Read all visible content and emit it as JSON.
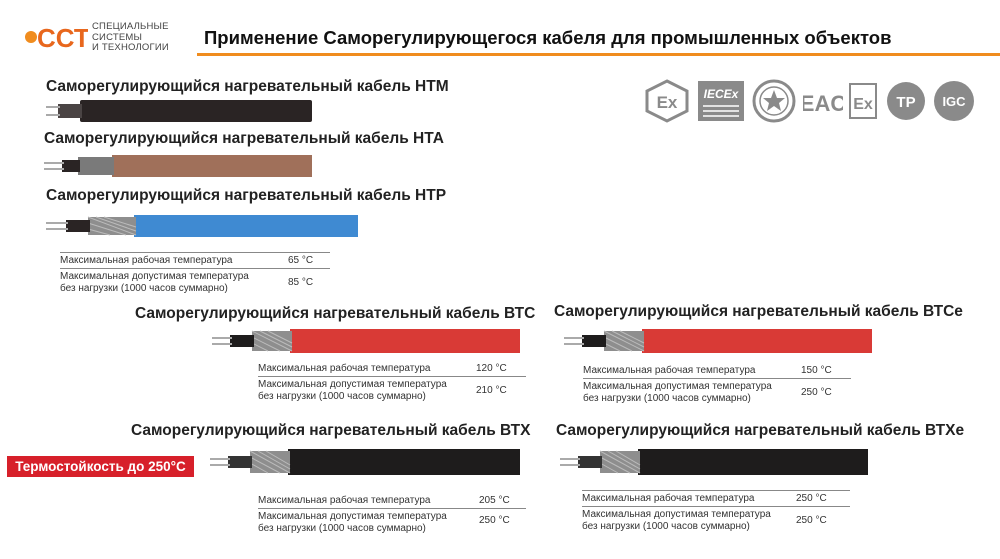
{
  "logo": {
    "mark": "ССТ",
    "line1": "СПЕЦИАЛЬНЫЕ",
    "line2": "СИСТЕМЫ",
    "line3": "И ТЕХНОЛОГИИ"
  },
  "title": "Применение Саморегулирующегося кабеля для промышленных объектов",
  "certifications": [
    {
      "name": "ex-hexagon",
      "label": "Ex"
    },
    {
      "name": "iecex",
      "label": "IECEx"
    },
    {
      "name": "seal",
      "label": ""
    },
    {
      "name": "eac",
      "label": "EAC"
    },
    {
      "name": "ex-box",
      "label": "Ex"
    },
    {
      "name": "tr",
      "label": "ТР"
    },
    {
      "name": "igc",
      "label": "IGC"
    }
  ],
  "cables": {
    "htm": {
      "name": "Саморегулирующийся нагревательный кабель НТМ",
      "color": "#2a2424"
    },
    "hta": {
      "name": "Саморегулирующийся нагревательный кабель НТА",
      "color": "#a0705a"
    },
    "htp": {
      "name": "Саморегулирующийся нагревательный кабель НТР",
      "color": "#3f8ad2",
      "spec": {
        "max_working_label": "Максимальная рабочая температура",
        "max_working_value": "65 °С",
        "max_allowed_label_1": "Максимальная допустимая температура",
        "max_allowed_label_2": "без нагрузки (1000 часов суммарно)",
        "max_allowed_value": "85 °С"
      }
    },
    "btc": {
      "name": "Саморегулирующийся нагревательный кабель ВТС",
      "color": "#d93a36",
      "spec": {
        "max_working_label": "Максимальная рабочая температура",
        "max_working_value": "120 °С",
        "max_allowed_label_1": "Максимальная допустимая температура",
        "max_allowed_label_2": "без нагрузки (1000 часов суммарно)",
        "max_allowed_value": "210 °С"
      }
    },
    "btce": {
      "name": "Саморегулирующийся нагревательный кабель ВТСе",
      "color": "#d93a36",
      "spec": {
        "max_working_label": "Максимальная рабочая температура",
        "max_working_value": "150 °С",
        "max_allowed_label_1": "Максимальная допустимая температура",
        "max_allowed_label_2": "без нагрузки (1000 часов суммарно)",
        "max_allowed_value": "250 °С"
      }
    },
    "btx": {
      "name": "Саморегулирующийся нагревательный кабель ВТХ",
      "color": "#1e1c1c",
      "spec": {
        "max_working_label": "Максимальная рабочая температура",
        "max_working_value": "205 °С",
        "max_allowed_label_1": "Максимальная допустимая температура",
        "max_allowed_label_2": "без нагрузки (1000 часов суммарно)",
        "max_allowed_value": "250 °С"
      }
    },
    "btxe": {
      "name": "Саморегулирующийся нагревательный кабель ВТХе",
      "color": "#1e1c1c",
      "spec": {
        "max_working_label": "Максимальная рабочая температура",
        "max_working_value": "250 °С",
        "max_allowed_label_1": "Максимальная допустимая температура",
        "max_allowed_label_2": "без нагрузки (1000 часов суммарно)",
        "max_allowed_value": "250 °С"
      }
    }
  },
  "heat_badge": "Термостойкость до 250°С",
  "colors": {
    "accent_orange": "#f08c1e",
    "badge_red": "#d7202a",
    "cert_gray": "#8a8a8a"
  }
}
